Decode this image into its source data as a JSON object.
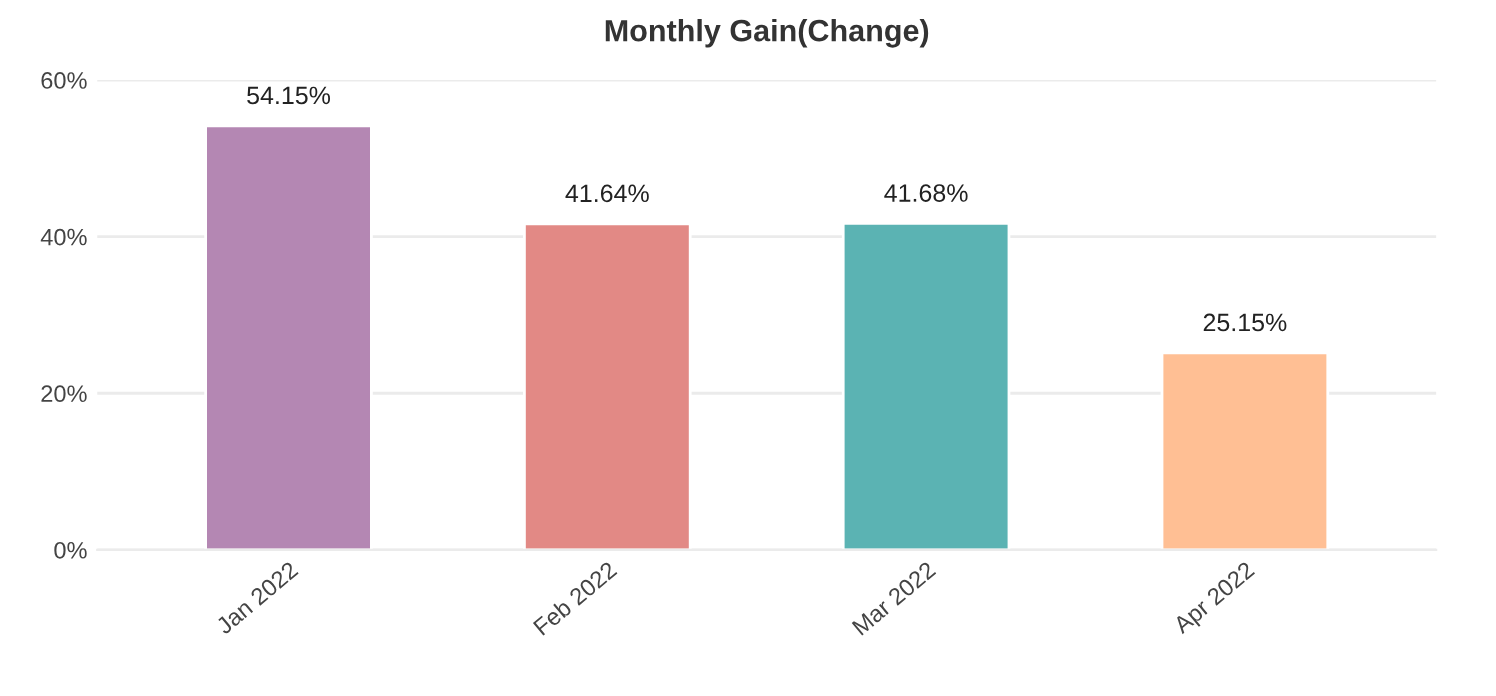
{
  "chart_data": {
    "type": "bar",
    "title": "Monthly Gain(Change)",
    "categories": [
      "Jan 2022",
      "Feb 2022",
      "Mar 2022",
      "Apr 2022"
    ],
    "values": [
      54.15,
      41.64,
      41.68,
      25.15
    ],
    "colors": [
      "#b487b3",
      "#e28985",
      "#5bb3b3",
      "#ffbf94"
    ],
    "value_labels": [
      "54.15%",
      "41.64%",
      "41.68%",
      "25.15%"
    ],
    "ylim": [
      0,
      60
    ],
    "yticks": [
      {
        "value": 0,
        "label": "0%"
      },
      {
        "value": 20,
        "label": "20%"
      },
      {
        "value": 40,
        "label": "40%"
      },
      {
        "value": 60,
        "label": "60%"
      }
    ],
    "grid": "y"
  }
}
